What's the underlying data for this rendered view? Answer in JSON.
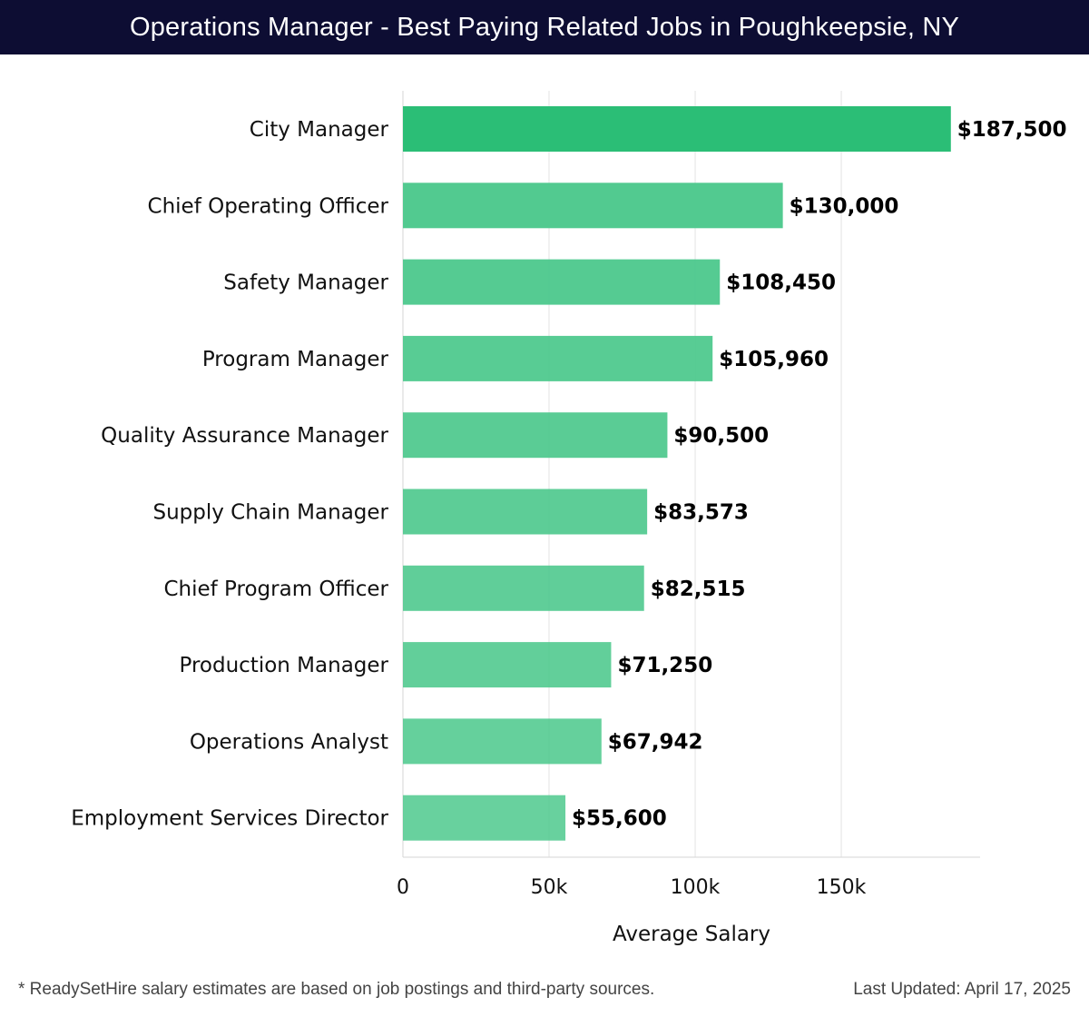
{
  "header": {
    "title": "Operations Manager - Best Paying Related Jobs in Poughkeepsie, NY"
  },
  "chart_data": {
    "type": "bar",
    "orientation": "horizontal",
    "title": "Operations Manager - Best Paying Related Jobs in Poughkeepsie, NY",
    "xlabel": "Average Salary",
    "ylabel": "",
    "xlim": [
      0,
      197500
    ],
    "xticks": [
      0,
      50000,
      100000,
      150000
    ],
    "xtick_labels": [
      "0",
      "50k",
      "100k",
      "150k"
    ],
    "grid": "vertical",
    "legend": "none",
    "categories": [
      "City Manager",
      "Chief Operating Officer",
      "Safety Manager",
      "Program Manager",
      "Quality Assurance Manager",
      "Supply Chain Manager",
      "Chief Program Officer",
      "Production Manager",
      "Operations Analyst",
      "Employment Services Director"
    ],
    "values": [
      187500,
      130000,
      108450,
      105960,
      90500,
      83573,
      82515,
      71250,
      67942,
      55600
    ],
    "value_labels": [
      "$187,500",
      "$130,000",
      "$108,450",
      "$105,960",
      "$90,500",
      "$83,573",
      "$82,515",
      "$71,250",
      "$67,942",
      "$55,600"
    ],
    "colors": {
      "top_bar": "#2bbe76",
      "bars": "#4cc88c",
      "grid": "#e3e3e3",
      "header_bg": "#0d0d33"
    }
  },
  "footer": {
    "note": "* ReadySetHire salary estimates are based on job postings and third-party sources.",
    "updated": "Last Updated: April 17, 2025"
  }
}
